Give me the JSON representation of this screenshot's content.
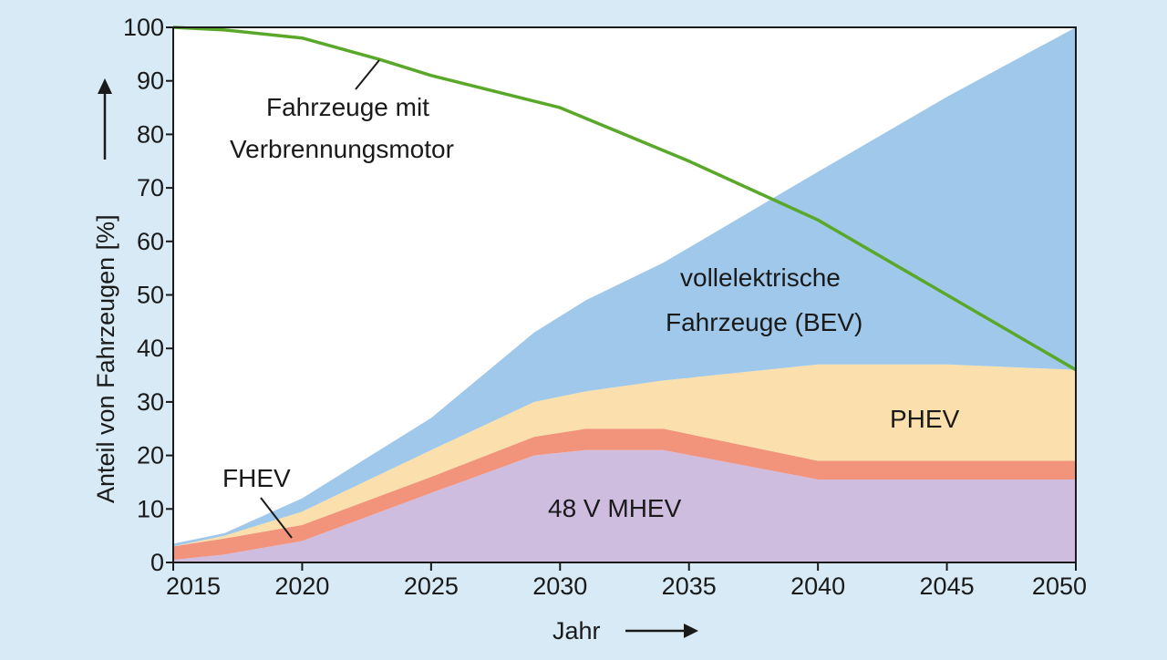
{
  "chart_data": {
    "type": "area",
    "xlabel": "Jahr",
    "ylabel": "Anteil von Fahrzeugen [%]",
    "xlim": [
      2015,
      2050
    ],
    "ylim": [
      0,
      100
    ],
    "x_ticks": [
      2015,
      2020,
      2025,
      2030,
      2035,
      2040,
      2045,
      2050
    ],
    "y_ticks": [
      0,
      10,
      20,
      30,
      40,
      50,
      60,
      70,
      80,
      90,
      100
    ],
    "grid": false,
    "x": [
      2015,
      2017,
      2020,
      2025,
      2029,
      2031,
      2034,
      2040,
      2045,
      2050
    ],
    "series": [
      {
        "name": "48 V MHEV",
        "kind": "stacked_area",
        "color": "#cfbde0",
        "values": [
          0.5,
          1.5,
          4,
          13,
          20,
          21,
          21,
          15.5,
          15.5,
          15.5
        ]
      },
      {
        "name": "FHEV",
        "kind": "stacked_area",
        "color": "#f2937c",
        "values": [
          2.5,
          3,
          3,
          3,
          3.5,
          4,
          4,
          3.5,
          3.5,
          3.5
        ]
      },
      {
        "name": "PHEV",
        "kind": "stacked_area",
        "color": "#fbe0ad",
        "values": [
          0,
          0.5,
          2.5,
          5,
          6.5,
          7,
          9,
          18,
          18,
          17
        ]
      },
      {
        "name": "vollelektrische Fahrzeuge (BEV)",
        "kind": "stacked_area",
        "color": "#9fc8ea",
        "values": [
          0.5,
          0.5,
          2.5,
          6,
          13,
          17,
          22,
          36,
          50,
          64
        ]
      },
      {
        "name": "Fahrzeuge mit Verbrennungsmotor",
        "kind": "line",
        "color": "#5aa82a",
        "x": [
          2015,
          2017,
          2020,
          2023,
          2025,
          2030,
          2035,
          2040,
          2045,
          2050
        ],
        "values": [
          100,
          99.5,
          98,
          94,
          91,
          85,
          75,
          64,
          50,
          36
        ]
      }
    ],
    "annotations": {
      "verbrenner": [
        "Fahrzeuge mit",
        "Verbrennungsmotor"
      ],
      "bev": [
        "vollelektrische",
        "Fahrzeuge (BEV)"
      ],
      "phev": "PHEV",
      "fhev": "FHEV",
      "mhev": "48 V MHEV"
    }
  }
}
